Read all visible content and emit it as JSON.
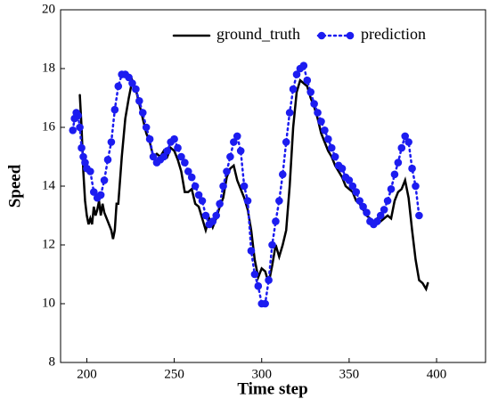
{
  "chart_data": {
    "type": "line",
    "xlabel": "Time step",
    "ylabel": "Speed",
    "xlim": [
      185,
      428
    ],
    "xticks": [
      200,
      250,
      300,
      350,
      400
    ],
    "ylim": [
      8,
      20
    ],
    "yticks": [
      8,
      10,
      12,
      14,
      16,
      18,
      20
    ],
    "legend": "upper right",
    "series": [
      {
        "name": "ground_truth",
        "color": "#000000",
        "marker": false,
        "x": [
          196,
          197,
          198,
          199,
          200,
          201,
          202,
          203,
          204,
          205,
          206,
          207,
          208,
          209,
          210,
          212,
          214,
          215,
          216,
          217,
          218,
          220,
          222,
          224,
          226,
          228,
          230,
          232,
          234,
          236,
          238,
          240,
          242,
          244,
          246,
          248,
          250,
          252,
          254,
          256,
          258,
          260,
          262,
          264,
          266,
          268,
          270,
          272,
          274,
          276,
          278,
          280,
          282,
          284,
          286,
          288,
          290,
          292,
          294,
          296,
          298,
          300,
          302,
          304,
          306,
          308,
          310,
          312,
          314,
          316,
          318,
          320,
          322,
          324,
          326,
          328,
          330,
          332,
          334,
          336,
          338,
          340,
          342,
          344,
          346,
          348,
          350,
          352,
          354,
          356,
          358,
          360,
          362,
          364,
          366,
          368,
          370,
          372,
          374,
          376,
          378,
          380,
          382,
          384,
          386,
          388,
          390,
          392,
          394,
          395
        ],
        "values": [
          17.1,
          16.0,
          14.5,
          13.5,
          13.0,
          12.7,
          12.9,
          12.7,
          13.3,
          13.0,
          13.2,
          13.5,
          13.0,
          13.4,
          13.1,
          12.8,
          12.5,
          12.2,
          12.5,
          13.4,
          13.4,
          15.0,
          16.3,
          17.0,
          17.6,
          17.3,
          16.8,
          16.3,
          15.8,
          15.5,
          15.0,
          15.1,
          15.0,
          15.2,
          15.0,
          15.3,
          15.2,
          14.9,
          14.5,
          13.8,
          13.8,
          13.9,
          13.4,
          13.3,
          12.9,
          12.5,
          12.9,
          12.6,
          12.9,
          13.3,
          13.6,
          14.3,
          14.6,
          14.7,
          14.2,
          13.9,
          13.6,
          13.2,
          12.5,
          11.5,
          10.9,
          11.2,
          11.1,
          10.7,
          11.3,
          12.0,
          11.6,
          12.0,
          12.5,
          14.0,
          16.0,
          17.2,
          17.6,
          17.5,
          17.4,
          17.0,
          16.7,
          16.3,
          15.8,
          15.5,
          15.2,
          15.0,
          14.7,
          14.5,
          14.3,
          14.0,
          13.9,
          13.8,
          13.5,
          13.4,
          13.2,
          13.0,
          12.9,
          12.8,
          12.9,
          12.8,
          12.9,
          13.0,
          12.9,
          13.5,
          13.8,
          13.9,
          14.2,
          13.6,
          12.5,
          11.5,
          10.8,
          10.7,
          10.5,
          10.7
        ]
      },
      {
        "name": "prediction",
        "color": "#1c1cf0",
        "marker": true,
        "x": [
          192,
          193,
          194,
          195,
          196,
          197,
          198,
          199,
          200,
          202,
          204,
          206,
          208,
          210,
          212,
          214,
          216,
          218,
          220,
          222,
          224,
          226,
          228,
          230,
          232,
          234,
          236,
          238,
          240,
          242,
          244,
          246,
          248,
          250,
          252,
          254,
          256,
          258,
          260,
          262,
          264,
          266,
          268,
          270,
          272,
          274,
          276,
          278,
          280,
          282,
          284,
          286,
          288,
          290,
          292,
          294,
          296,
          298,
          300,
          302,
          304,
          306,
          308,
          310,
          312,
          314,
          316,
          318,
          320,
          322,
          324,
          326,
          328,
          330,
          332,
          334,
          336,
          338,
          340,
          342,
          344,
          346,
          348,
          350,
          352,
          354,
          356,
          358,
          360,
          362,
          364,
          366,
          368,
          370,
          372,
          374,
          376,
          378,
          380,
          382,
          384,
          386,
          388,
          390
        ],
        "values": [
          15.9,
          16.3,
          16.5,
          16.4,
          16.0,
          15.3,
          15.0,
          14.8,
          14.6,
          14.5,
          13.8,
          13.6,
          13.7,
          14.2,
          14.9,
          15.5,
          16.6,
          17.4,
          17.8,
          17.8,
          17.7,
          17.5,
          17.3,
          16.9,
          16.5,
          16.0,
          15.6,
          15.0,
          14.8,
          14.9,
          15.0,
          15.2,
          15.5,
          15.6,
          15.3,
          15.0,
          14.8,
          14.5,
          14.3,
          14.0,
          13.7,
          13.5,
          13.0,
          12.7,
          12.8,
          13.0,
          13.4,
          14.0,
          14.5,
          15.0,
          15.5,
          15.7,
          15.2,
          14.0,
          13.5,
          11.8,
          11.0,
          10.6,
          10.0,
          10.0,
          10.8,
          12.0,
          12.8,
          13.5,
          14.4,
          15.5,
          16.5,
          17.3,
          17.8,
          18.0,
          18.1,
          17.6,
          17.2,
          16.8,
          16.5,
          16.2,
          15.9,
          15.6,
          15.3,
          15.0,
          14.7,
          14.6,
          14.3,
          14.2,
          14.0,
          13.8,
          13.5,
          13.3,
          13.1,
          12.8,
          12.7,
          12.8,
          13.0,
          13.2,
          13.5,
          13.9,
          14.4,
          14.8,
          15.3,
          15.7,
          15.5,
          14.6,
          14.0,
          13.0
        ]
      }
    ]
  }
}
